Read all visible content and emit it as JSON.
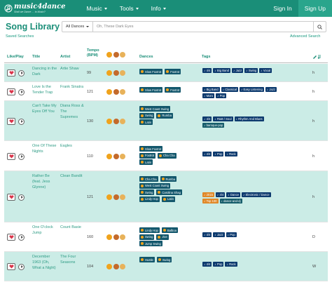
{
  "nav": {
    "logo_title": "music4dance",
    "logo_tag": "Shall we Dance … to Music?",
    "menu": [
      "Music",
      "Tools",
      "Info"
    ],
    "signin": "Sign In",
    "signup": "Sign Up"
  },
  "page": {
    "title": "Song Library",
    "saved": "Saved Searches",
    "advanced": "Advanced Search"
  },
  "search": {
    "select_value": "All Dances",
    "placeholder": "Oh, These Dark Eyes"
  },
  "columns": {
    "like": "Like/Play",
    "title": "Title",
    "artist": "Artist",
    "tempo_1": "Tempo",
    "tempo_2": "(BPM)",
    "dances": "Dances",
    "tags": "Tags"
  },
  "colors": {
    "brand": "#1a8e78",
    "row_alt": "#cbece6",
    "badge": "#13576c",
    "tag": "#0d3a6e",
    "tag_orange": "#e08828"
  },
  "rows": [
    {
      "title": "Dancing in the Dark",
      "artist": "Artie Shaw",
      "tempo": "99",
      "dances": [
        [
          "Slow Foxtrot",
          "Foxtrot"
        ]
      ],
      "tags": [
        [
          "4/4",
          "Big Band",
          "Jazz",
          "Swing",
          "Vocal"
        ]
      ],
      "user": "h"
    },
    {
      "title": "Love Is the Tender Trap",
      "artist": "Frank Sinatra",
      "tempo": "121",
      "dances": [
        [
          "Slow Foxtrot",
          "Foxtrot"
        ]
      ],
      "tags": [
        [
          "Big Band",
          "Classical",
          "Easy Listening",
          "Jazz"
        ],
        [
          "Moro",
          "Pop"
        ]
      ],
      "user": "h"
    },
    {
      "title": "Can't Take My Eyes Off You",
      "artist": "Diana Ross & The Supremes",
      "tempo": "130",
      "dances": [
        [
          "West Coast Swing"
        ],
        [
          "Swing",
          "Rumba"
        ],
        [
          "Latin"
        ]
      ],
      "tags": [
        [
          "4/4",
          "R&B / Soul",
          "Rhythm And Blues"
        ],
        [
          "baroque-pop"
        ]
      ],
      "user": "h"
    },
    {
      "title": "One Of These Nights",
      "artist": "Eagles",
      "tempo": "110",
      "dances": [
        [
          "Slow Foxtrot"
        ],
        [
          "Foxtrot",
          "Cha Cha"
        ],
        [
          "Latin"
        ]
      ],
      "tags": [
        [
          "4/4",
          "Pop",
          "Rock"
        ]
      ],
      "user": "h"
    },
    {
      "title": "Rather Be (feat. Jess Glynne)",
      "artist": "Clean Bandit",
      "tempo": "121",
      "dances": [
        [
          "Cha Cha",
          "Rumba"
        ],
        [
          "West Coast Swing"
        ],
        [
          "Swing",
          "Carolina Shag"
        ],
        [
          "Lindy Hop",
          "Latin"
        ]
      ],
      "tags": [
        [
          "2015",
          "4/4",
          "Dance",
          "Electronic / Dance"
        ],
        [
          "Top 100",
          "dance-and-dj"
        ]
      ],
      "user": "h"
    },
    {
      "title": "One O'clock Jump",
      "artist": "Count Basie",
      "tempo": "160",
      "dances": [
        [
          "Lindy Hop",
          "Balboa"
        ],
        [
          "Swing",
          "Jive"
        ],
        [
          "Jump Swing"
        ]
      ],
      "tags": [
        [
          "4/4",
          "Jazz",
          "Pop"
        ]
      ],
      "user": "D"
    },
    {
      "title": "December 1963 (Oh, What a Night)",
      "artist": "The Four Seasons",
      "tempo": "104",
      "dances": [
        [
          "Hustle",
          "Swing"
        ]
      ],
      "tags": [
        [
          "4/4",
          "Pop",
          "Rock"
        ]
      ],
      "user": "W"
    }
  ]
}
